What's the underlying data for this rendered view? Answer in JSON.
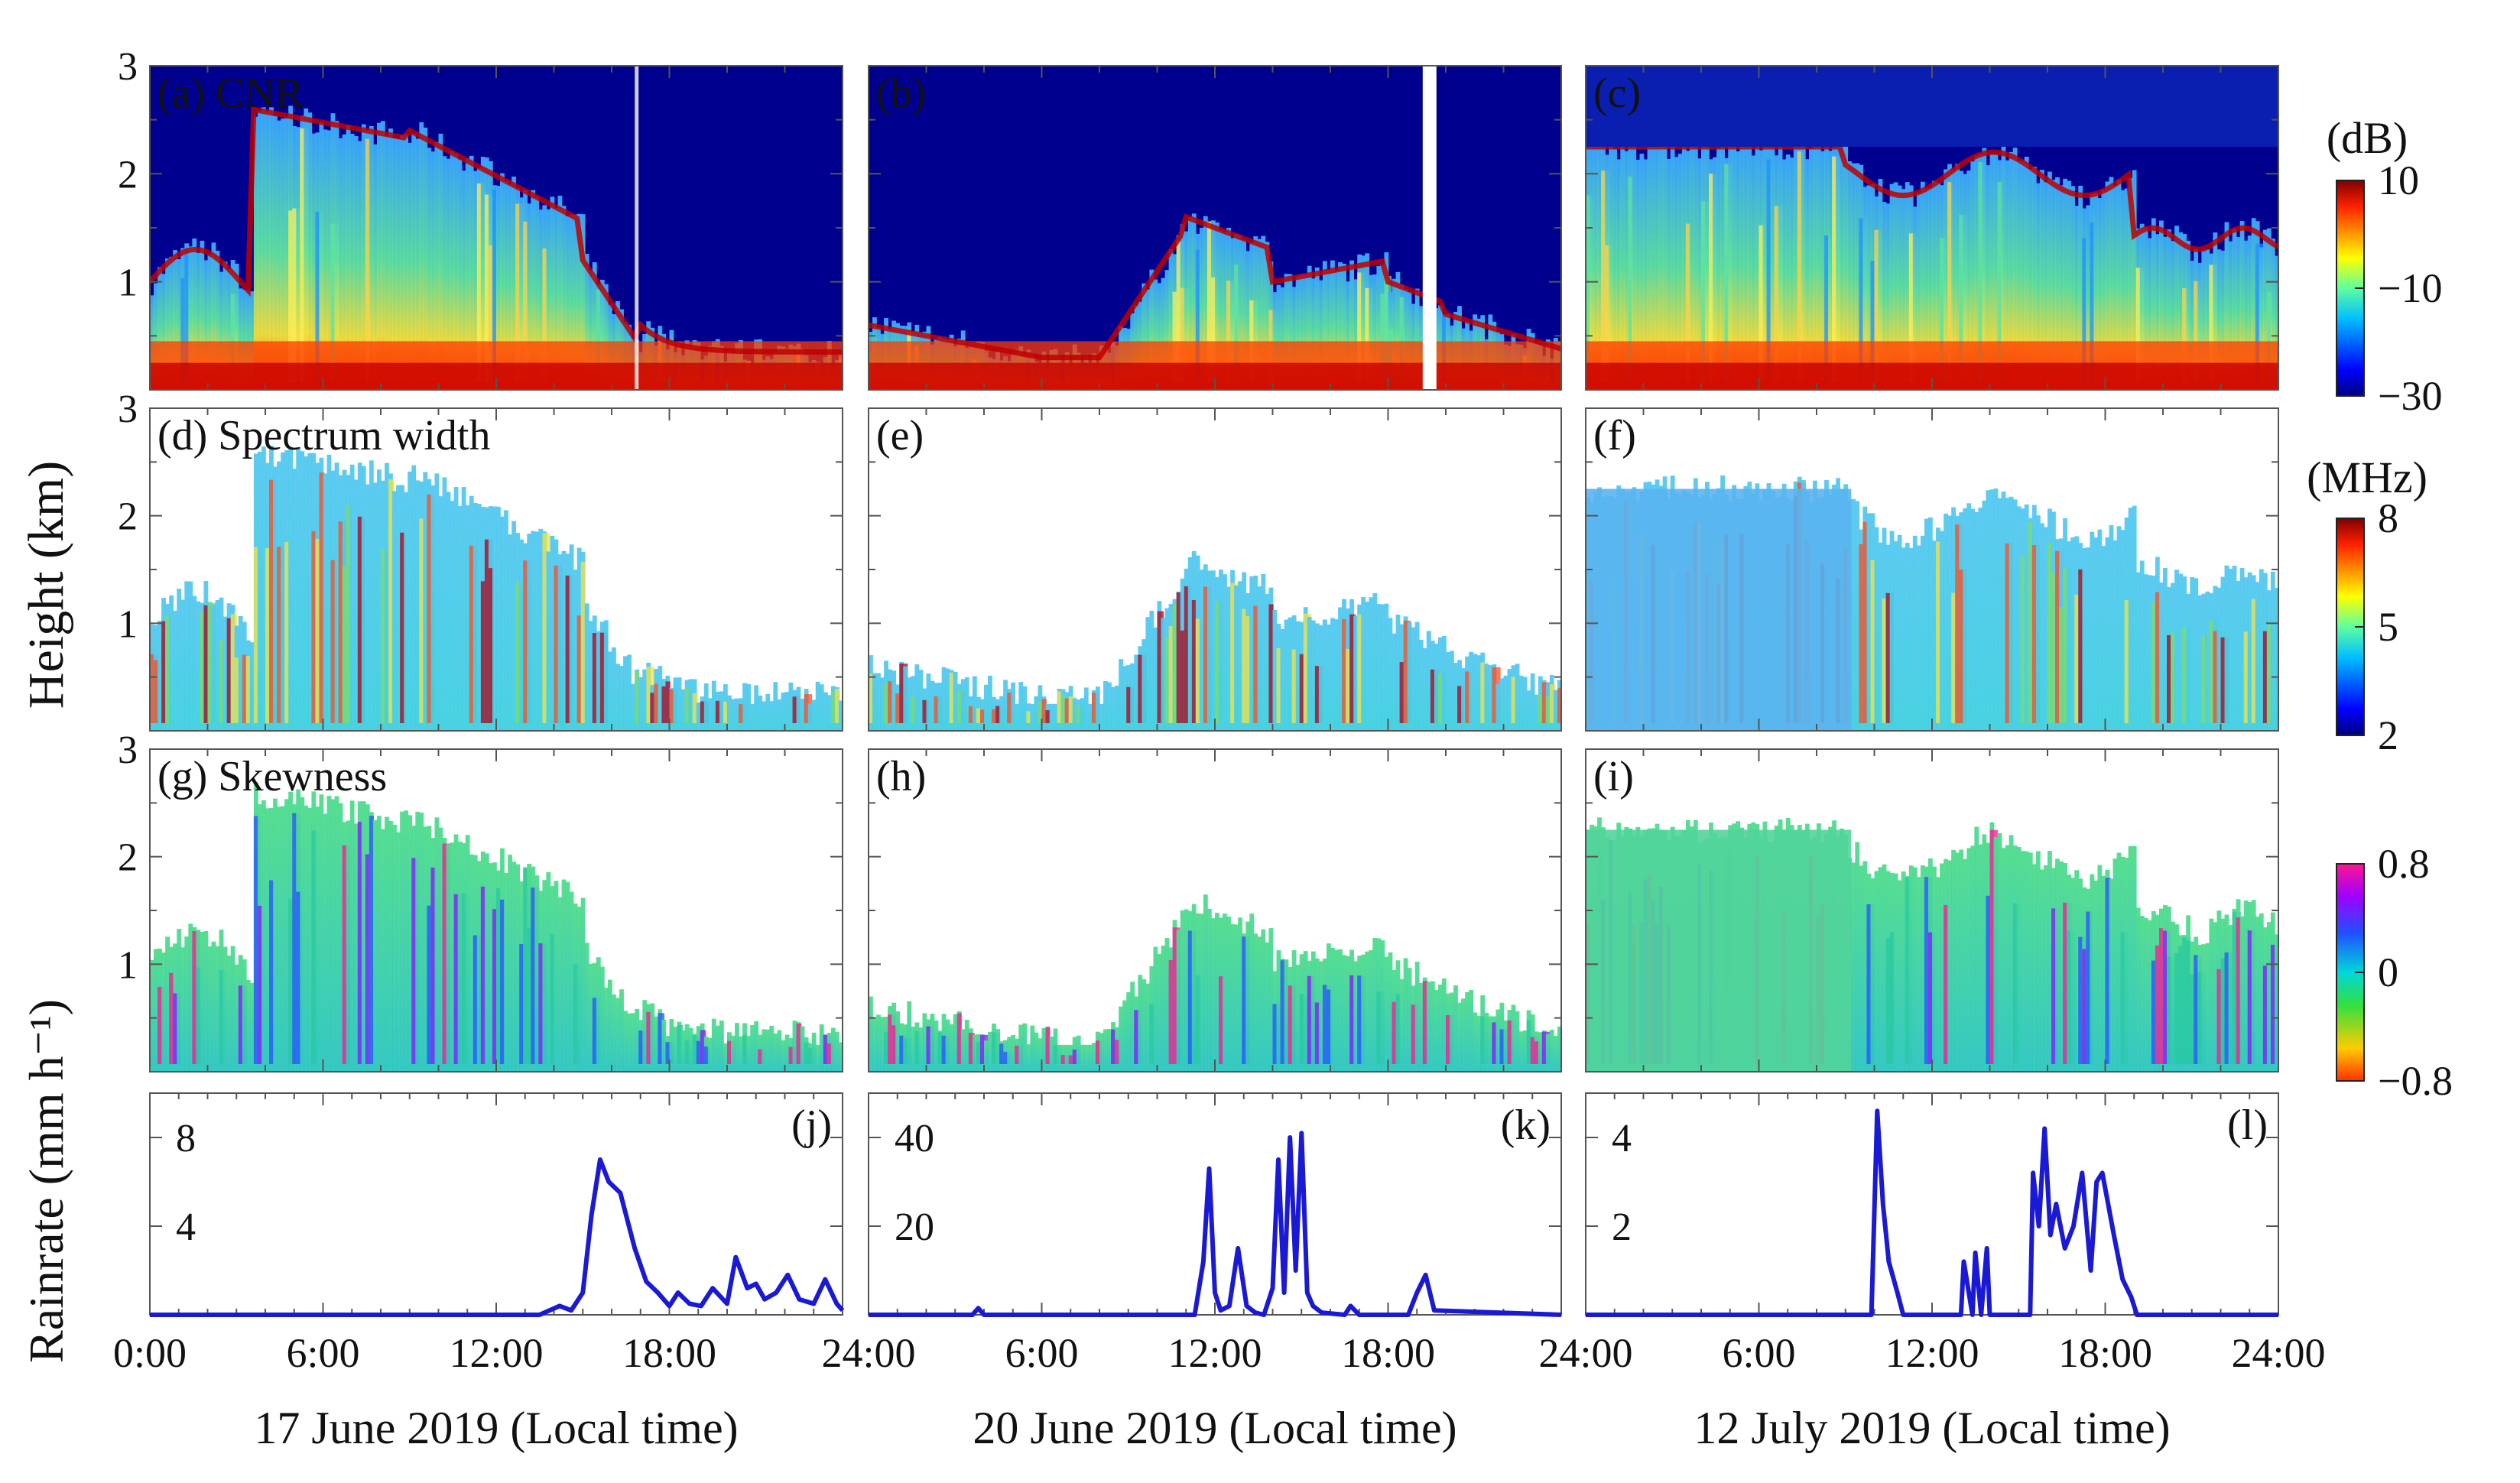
{
  "figure": {
    "ylabel_height": "Height (km)",
    "ylabel_rainrate": "Rainrate (mm h⁻¹)"
  },
  "columns": [
    {
      "date_label": "17 June 2019 (Local time)"
    },
    {
      "date_label": "20 June 2019 (Local time)"
    },
    {
      "date_label": "12 July 2019 (Local time)"
    }
  ],
  "x_tick_labels": [
    [
      "0:00",
      "6:00",
      "12:00",
      "18:00"
    ],
    [
      "24:00",
      "6:00",
      "12:00",
      "18:00"
    ],
    [
      "24:00",
      "6:00",
      "12:00",
      "18:00",
      "24:00"
    ]
  ],
  "colorbars": [
    {
      "unit": "(dB)",
      "ticks": [
        "10",
        "−10",
        "−30"
      ],
      "range": [
        -30,
        10
      ],
      "colormap": "jet"
    },
    {
      "unit": "(MHz)",
      "ticks": [
        "8",
        "5",
        "2"
      ],
      "range": [
        2,
        8
      ],
      "colormap": "jet"
    },
    {
      "unit": "",
      "ticks": [
        "0.8",
        "0",
        "−0.8"
      ],
      "range": [
        -0.8,
        0.8
      ],
      "colormap": "hsv-like"
    }
  ],
  "chart_data": [
    {
      "type": "heatmap",
      "panels": [
        {
          "label": "(a) CNR",
          "date": "17 June 2019"
        },
        {
          "label": "(b)",
          "date": "20 June 2019"
        },
        {
          "label": "(c)",
          "date": "12 July 2019"
        }
      ],
      "variable": "CNR",
      "unit": "dB",
      "clim": [
        -30,
        10
      ],
      "xlim_hours": [
        0,
        24
      ],
      "ylim_km": [
        0,
        3
      ],
      "y_ticks": [
        "3",
        "2",
        "1"
      ]
    },
    {
      "type": "heatmap",
      "panels": [
        {
          "label": "(d) Spectrum width",
          "date": "17 June 2019"
        },
        {
          "label": "(e)",
          "date": "20 June 2019"
        },
        {
          "label": "(f)",
          "date": "12 July 2019"
        }
      ],
      "variable": "Spectrum width",
      "unit": "MHz",
      "clim": [
        2,
        8
      ],
      "xlim_hours": [
        0,
        24
      ],
      "ylim_km": [
        0,
        3
      ],
      "y_ticks": [
        "3",
        "2",
        "1"
      ]
    },
    {
      "type": "heatmap",
      "panels": [
        {
          "label": "(g) Skewness",
          "date": "17 June 2019"
        },
        {
          "label": "(h)",
          "date": "20 June 2019"
        },
        {
          "label": "(i)",
          "date": "12 July 2019"
        }
      ],
      "variable": "Skewness",
      "unit": "",
      "clim": [
        -0.8,
        0.8
      ],
      "xlim_hours": [
        0,
        24
      ],
      "ylim_km": [
        0,
        3
      ],
      "y_ticks": [
        "3",
        "2",
        "1"
      ]
    },
    {
      "type": "line",
      "color": "#1a1ad6",
      "panels": [
        {
          "label": "(j)",
          "date": "17 June 2019",
          "ylim": [
            0,
            10
          ],
          "y_ticks": [
            "8",
            "4"
          ],
          "y_tick_values": [
            8,
            4
          ],
          "x": [
            0,
            13.5,
            14.2,
            14.6,
            15.0,
            15.3,
            15.6,
            15.9,
            16.3,
            16.8,
            17.2,
            17.6,
            18.0,
            18.3,
            18.7,
            19.1,
            19.5,
            20.0,
            20.3,
            20.7,
            21.0,
            21.3,
            21.7,
            22.1,
            22.5,
            23.0,
            23.4,
            23.8,
            24.0
          ],
          "y": [
            0,
            0,
            0.4,
            0.2,
            1.0,
            4.5,
            7.0,
            6.0,
            5.5,
            3.0,
            1.5,
            1.0,
            0.4,
            1.0,
            0.5,
            0.4,
            1.2,
            0.5,
            2.6,
            1.2,
            1.4,
            0.7,
            1.0,
            1.8,
            0.7,
            0.5,
            1.6,
            0.5,
            0.2
          ]
        },
        {
          "label": "(k)",
          "date": "20 June 2019",
          "ylim": [
            0,
            50
          ],
          "y_ticks": [
            "40",
            "20"
          ],
          "y_tick_values": [
            40,
            20
          ],
          "x": [
            0,
            3.6,
            3.8,
            4.0,
            11.3,
            11.6,
            11.8,
            12.0,
            12.2,
            12.5,
            12.8,
            13.1,
            13.4,
            13.7,
            14.0,
            14.2,
            14.4,
            14.6,
            14.8,
            15.0,
            15.2,
            15.4,
            15.7,
            16.5,
            16.7,
            17.0,
            18.7,
            19.0,
            19.3,
            19.6,
            24.0
          ],
          "y": [
            0,
            0,
            1.5,
            0,
            0,
            12,
            33,
            5,
            1,
            2,
            15,
            2,
            0.5,
            0,
            6,
            35,
            5,
            40,
            10,
            41,
            5,
            2,
            0.5,
            0,
            2,
            0,
            0,
            5,
            9,
            1,
            0
          ]
        },
        {
          "label": "(l)",
          "date": "12 July 2019",
          "ylim": [
            0,
            5
          ],
          "y_ticks": [
            "4",
            "2"
          ],
          "y_tick_values": [
            4,
            2
          ],
          "x": [
            0,
            9.9,
            10.1,
            10.3,
            10.5,
            10.8,
            11.0,
            13.0,
            13.1,
            13.4,
            13.5,
            13.7,
            13.9,
            14.0,
            15.4,
            15.5,
            15.7,
            15.9,
            16.1,
            16.3,
            16.6,
            16.9,
            17.2,
            17.5,
            17.7,
            17.9,
            18.1,
            18.3,
            18.6,
            18.9,
            19.1,
            24.0
          ],
          "y": [
            0,
            0,
            4.6,
            2.5,
            1.2,
            0.5,
            0,
            0,
            1.2,
            0,
            1.4,
            0,
            1.5,
            0,
            0,
            3.2,
            2.0,
            4.2,
            1.8,
            2.5,
            1.5,
            2.0,
            3.2,
            1.0,
            3.0,
            3.2,
            2.5,
            1.8,
            0.8,
            0.4,
            0,
            0
          ]
        }
      ],
      "xlim_hours": [
        0,
        24
      ]
    }
  ]
}
